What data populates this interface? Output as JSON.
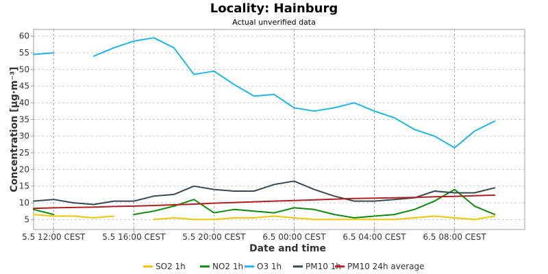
{
  "chart_data": {
    "type": "line",
    "title": "Locality: Hainburg",
    "subtitle": "Actual unverified data",
    "xlabel": "Date and time",
    "ylabel": "Concentration [µg·m⁻³]",
    "ylim": [
      2,
      62
    ],
    "y_ticks": [
      5,
      10,
      15,
      20,
      25,
      30,
      35,
      40,
      45,
      50,
      55,
      60
    ],
    "x_hours_range": [
      -1,
      23.5
    ],
    "x_ticks": [
      {
        "hour": 0,
        "label": "5.5 12:00 CEST"
      },
      {
        "hour": 4,
        "label": "5.5 16:00 CEST"
      },
      {
        "hour": 8,
        "label": "5.5 20:00 CEST"
      },
      {
        "hour": 12,
        "label": "6.5 00:00 CEST"
      },
      {
        "hour": 16,
        "label": "6.5 04:00 CEST"
      },
      {
        "hour": 20,
        "label": "6.5 08:00 CEST"
      }
    ],
    "grid": true,
    "legend_position": "bottom",
    "x_hours": [
      -1,
      0,
      1,
      2,
      3,
      4,
      5,
      6,
      7,
      8,
      9,
      10,
      11,
      12,
      13,
      14,
      15,
      16,
      17,
      18,
      19,
      20,
      21,
      22,
      23
    ],
    "series": [
      {
        "name": "SO2 1h",
        "color": "#f2c500",
        "values": [
          6.5,
          6.0,
          6.0,
          5.5,
          6.0,
          null,
          5.0,
          5.5,
          5.0,
          5.0,
          5.5,
          5.5,
          6.0,
          5.5,
          5.0,
          5.0,
          5.0,
          5.0,
          5.0,
          5.5,
          6.0,
          5.5,
          5.0,
          6.0,
          null
        ]
      },
      {
        "name": "NO2 1h",
        "color": "#0a8a0a",
        "values": [
          8.0,
          6.5,
          null,
          null,
          null,
          6.5,
          7.5,
          9.0,
          11.0,
          7.0,
          8.0,
          7.5,
          7.0,
          8.5,
          8.0,
          6.5,
          5.5,
          6.0,
          6.5,
          8.0,
          10.5,
          14.0,
          9.0,
          6.5,
          null
        ]
      },
      {
        "name": "O3 1h",
        "color": "#1ab6ec",
        "values": [
          54.5,
          55.0,
          null,
          54.0,
          56.5,
          58.5,
          59.5,
          56.5,
          48.5,
          49.5,
          45.5,
          42.0,
          42.5,
          38.5,
          37.5,
          38.5,
          40.0,
          37.5,
          35.5,
          32.0,
          30.0,
          26.5,
          31.5,
          34.5,
          null
        ]
      },
      {
        "name": "PM10 1h",
        "color": "#37474f",
        "values": [
          10.5,
          11.0,
          10.0,
          9.5,
          10.5,
          10.5,
          12.0,
          12.5,
          15.0,
          14.0,
          13.5,
          13.5,
          15.5,
          16.5,
          14.0,
          12.0,
          10.5,
          10.5,
          11.0,
          11.5,
          13.5,
          13.0,
          13.0,
          14.5,
          null
        ]
      },
      {
        "name": "PM10 24h average",
        "color": "#b71c1c",
        "values": [
          8.3,
          8.5,
          8.6,
          8.7,
          8.9,
          9.0,
          9.2,
          9.4,
          9.6,
          9.9,
          10.1,
          10.3,
          10.5,
          10.7,
          10.9,
          11.1,
          11.3,
          11.4,
          11.5,
          11.6,
          11.8,
          11.9,
          12.1,
          12.3,
          null
        ]
      }
    ]
  }
}
